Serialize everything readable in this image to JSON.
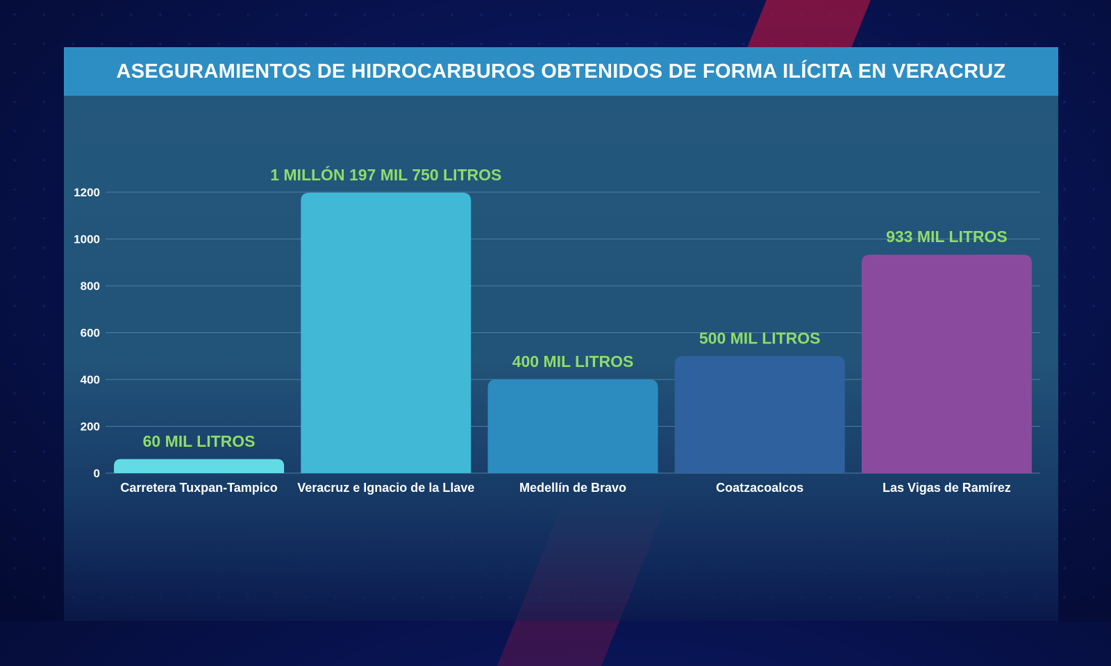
{
  "title": "ASEGURAMIENTOS DE HIDROCARBUROS OBTENIDOS DE FORMA ILÍCITA EN VERACRUZ",
  "colors": {
    "header_bg": "#2d8ec4",
    "data_label": "#8fdc6a",
    "grid": "#4f7fa0"
  },
  "chart_data": {
    "type": "bar",
    "title": "ASEGURAMIENTOS DE HIDROCARBUROS OBTENIDOS DE FORMA ILÍCITA EN VERACRUZ",
    "xlabel": "",
    "ylabel": "",
    "ylim": [
      0,
      1200
    ],
    "yticks": [
      0,
      200,
      400,
      600,
      800,
      1000,
      1200
    ],
    "grid": true,
    "categories": [
      "Carretera Tuxpan-Tampico",
      "Veracruz e Ignacio de la Llave",
      "Medellín de Bravo",
      "Coatzacoalcos",
      "Las Vigas de Ramírez"
    ],
    "values": [
      60,
      1197.75,
      400,
      500,
      933
    ],
    "data_labels": [
      "60 MIL LITROS",
      "1 MILLÓN 197 MIL 750 LITROS",
      "400 MIL LITROS",
      "500 MIL LITROS",
      "933 MIL LITROS"
    ],
    "bar_colors": [
      "#62dbe7",
      "#40b8d6",
      "#2c8cbf",
      "#2e619d",
      "#8a4b9f"
    ]
  }
}
